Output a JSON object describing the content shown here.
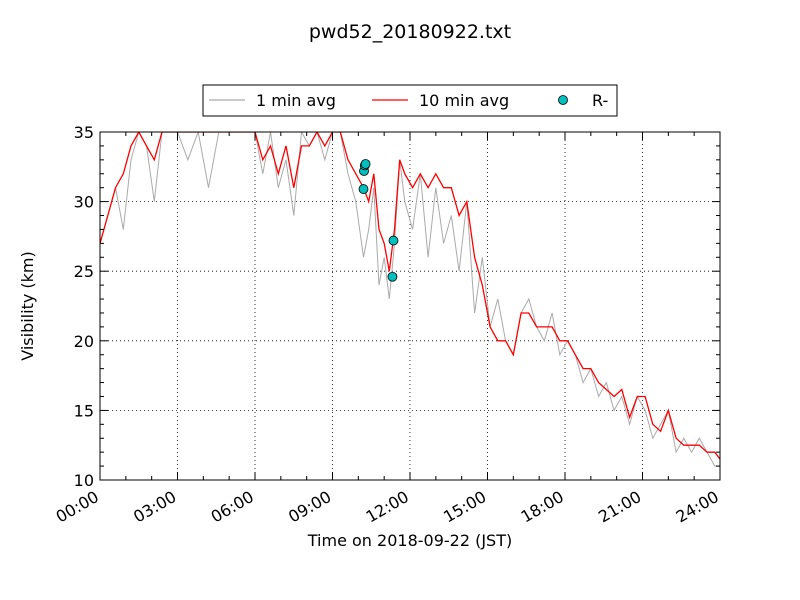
{
  "chart_data": {
    "type": "line",
    "title": "pwd52_20180922.txt",
    "xlabel": "Time on 2018-09-22 (JST)",
    "ylabel": "Visibility (km)",
    "x_unit": "hours",
    "xlim": [
      0,
      24
    ],
    "ylim": [
      10,
      35
    ],
    "x_ticks": [
      0,
      3,
      6,
      9,
      12,
      15,
      18,
      21,
      24
    ],
    "x_tick_labels": [
      "00:00",
      "03:00",
      "06:00",
      "09:00",
      "12:00",
      "15:00",
      "18:00",
      "21:00",
      "24:00"
    ],
    "y_ticks": [
      10,
      15,
      20,
      25,
      30,
      35
    ],
    "y_tick_labels": [
      "10",
      "15",
      "20",
      "25",
      "30",
      "35"
    ],
    "grid": true,
    "legend_position": "top-center, above plot",
    "series": [
      {
        "name": "1 min avg",
        "color": "#aaaaaa",
        "kind": "line",
        "x": [
          0,
          0.3,
          0.6,
          0.9,
          1.2,
          1.5,
          1.8,
          2.1,
          2.4,
          2.7,
          3.0,
          3.4,
          3.8,
          4.2,
          4.6,
          5.0,
          5.5,
          6.0,
          6.3,
          6.6,
          6.9,
          7.2,
          7.5,
          7.8,
          8.1,
          8.4,
          8.7,
          9.0,
          9.3,
          9.6,
          9.9,
          10.2,
          10.4,
          10.6,
          10.8,
          11.0,
          11.2,
          11.4,
          11.6,
          11.8,
          12.1,
          12.4,
          12.7,
          13.0,
          13.3,
          13.6,
          13.9,
          14.2,
          14.5,
          14.8,
          15.1,
          15.4,
          15.7,
          16.0,
          16.3,
          16.6,
          16.9,
          17.2,
          17.5,
          17.8,
          18.1,
          18.4,
          18.7,
          19.0,
          19.3,
          19.6,
          19.9,
          20.2,
          20.5,
          20.8,
          21.1,
          21.4,
          21.7,
          22.0,
          22.3,
          22.6,
          22.9,
          23.2,
          23.5,
          23.8,
          24.0
        ],
        "y": [
          27,
          29,
          31,
          28,
          33,
          35,
          34,
          30,
          35,
          35,
          35,
          33,
          35,
          31,
          35,
          35,
          35,
          35,
          32,
          35,
          31,
          33,
          29,
          35,
          34,
          35,
          33,
          35,
          35,
          32,
          30,
          26,
          28,
          31,
          24,
          26,
          23,
          27,
          33,
          30,
          28,
          32,
          26,
          31,
          27,
          29,
          25,
          30,
          22,
          26,
          21,
          23,
          20,
          19,
          22,
          23,
          21,
          20,
          22,
          19,
          20,
          19,
          17,
          18,
          16,
          17,
          15,
          16,
          14,
          16,
          15,
          13,
          14,
          15,
          12,
          13,
          12,
          13,
          12,
          11,
          11
        ]
      },
      {
        "name": "10 min avg",
        "color": "#ff0000",
        "kind": "line",
        "x": [
          0,
          0.3,
          0.6,
          0.9,
          1.2,
          1.5,
          1.8,
          2.1,
          2.4,
          2.7,
          3.0,
          3.4,
          3.8,
          4.2,
          4.6,
          5.0,
          5.5,
          6.0,
          6.3,
          6.6,
          6.9,
          7.2,
          7.5,
          7.8,
          8.1,
          8.4,
          8.7,
          9.0,
          9.3,
          9.6,
          9.9,
          10.2,
          10.4,
          10.6,
          10.8,
          11.0,
          11.2,
          11.4,
          11.6,
          11.8,
          12.1,
          12.4,
          12.7,
          13.0,
          13.3,
          13.6,
          13.9,
          14.2,
          14.5,
          14.8,
          15.1,
          15.4,
          15.7,
          16.0,
          16.3,
          16.6,
          16.9,
          17.2,
          17.5,
          17.8,
          18.1,
          18.4,
          18.7,
          19.0,
          19.3,
          19.6,
          19.9,
          20.2,
          20.5,
          20.8,
          21.1,
          21.4,
          21.7,
          22.0,
          22.3,
          22.6,
          22.9,
          23.2,
          23.5,
          23.8,
          24.0
        ],
        "y": [
          27,
          29,
          31,
          32,
          34,
          35,
          34,
          33,
          35,
          35,
          35,
          35,
          35,
          35,
          35,
          35,
          35,
          35,
          33,
          34,
          32,
          34,
          31,
          34,
          34,
          35,
          34,
          35,
          35,
          33,
          32,
          31,
          30,
          32,
          28,
          27,
          25,
          28,
          33,
          32,
          31,
          32,
          31,
          32,
          31,
          31,
          29,
          30,
          26,
          24,
          21,
          20,
          20,
          19,
          22,
          22,
          21,
          21,
          21,
          20,
          20,
          19,
          18,
          18,
          17,
          16.5,
          16,
          16.5,
          14.5,
          16,
          16,
          14,
          13.5,
          15,
          13,
          12.5,
          12.5,
          12.5,
          12,
          12,
          11.5
        ]
      },
      {
        "name": "R-",
        "color": "#00bfbf",
        "kind": "scatter",
        "x": [
          10.2,
          10.22,
          10.25,
          10.28,
          11.32,
          11.36
        ],
        "y": [
          30.9,
          32.2,
          32.6,
          32.7,
          24.6,
          27.2
        ]
      }
    ]
  }
}
